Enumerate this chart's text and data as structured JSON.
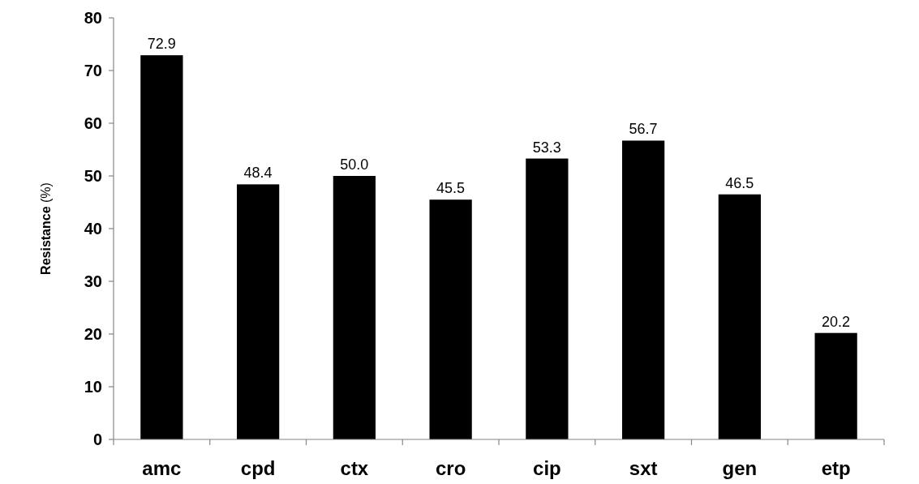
{
  "chart_data": {
    "type": "bar",
    "ylabel": "Resistance (%)",
    "categories": [
      "amc",
      "cpd",
      "ctx",
      "cro",
      "cip",
      "sxt",
      "gen",
      "etp"
    ],
    "values": [
      72.9,
      48.4,
      50.0,
      45.5,
      53.3,
      56.7,
      46.5,
      20.2
    ],
    "value_labels": [
      "72.9",
      "48.4",
      "50.0",
      "45.5",
      "53.3",
      "56.7",
      "46.5",
      "20.2"
    ],
    "color": "#000000",
    "ylim": [
      0,
      80
    ],
    "yticks": [
      0,
      10,
      20,
      30,
      40,
      50,
      60,
      70,
      80
    ]
  }
}
